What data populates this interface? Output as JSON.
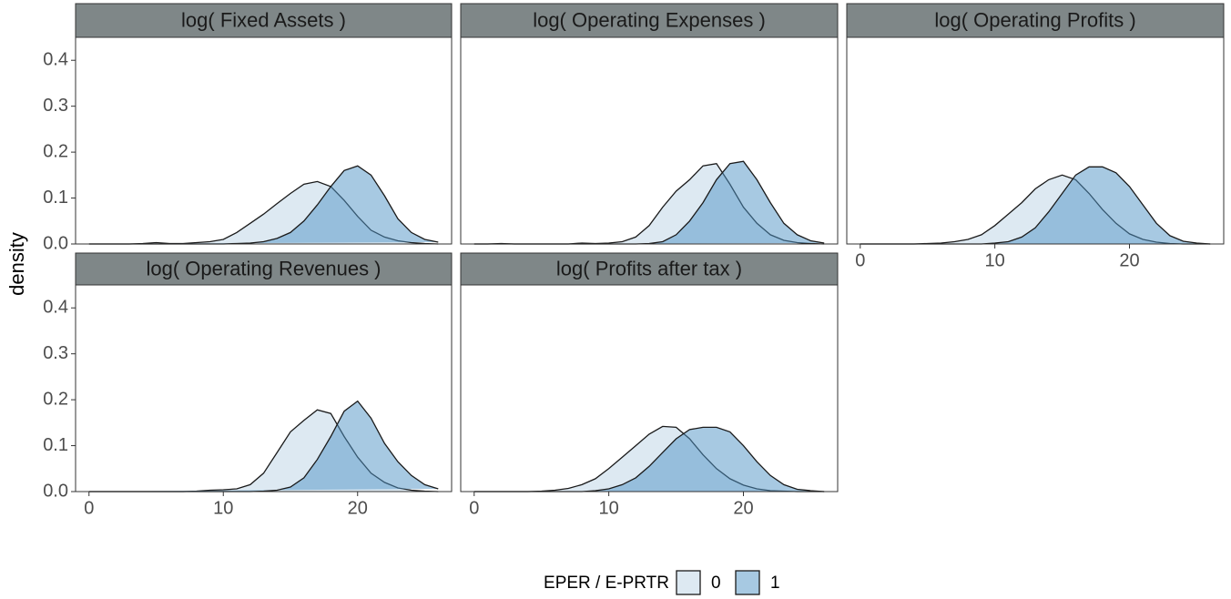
{
  "chart_data": {
    "type": "density",
    "ylabel": "density",
    "legend_title": "EPER / E-PRTR",
    "series": [
      {
        "name": "0",
        "color": "#bbd4e6"
      },
      {
        "name": "1",
        "color": "#4f93c6"
      }
    ],
    "x": [
      0,
      1,
      2,
      3,
      4,
      5,
      6,
      7,
      8,
      9,
      10,
      11,
      12,
      13,
      14,
      15,
      16,
      17,
      18,
      19,
      20,
      21,
      22,
      23,
      24,
      25,
      26
    ],
    "xlim": [
      -1,
      27
    ],
    "xticks": [
      0,
      10,
      20
    ],
    "ylim": [
      0,
      0.45
    ],
    "yticks": [
      {
        "value": 0,
        "label": "0.0"
      },
      {
        "value": 0.1,
        "label": "0.1"
      },
      {
        "value": 0.2,
        "label": "0.2"
      },
      {
        "value": 0.3,
        "label": "0.3"
      },
      {
        "value": 0.4,
        "label": "0.4"
      }
    ],
    "facets": [
      {
        "title": "log( Fixed Assets )",
        "values": [
          [
            0,
            0,
            0,
            0,
            0.001,
            0.003,
            0.001,
            0.001,
            0.003,
            0.005,
            0.01,
            0.025,
            0.045,
            0.065,
            0.088,
            0.11,
            0.13,
            0.136,
            0.125,
            0.095,
            0.06,
            0.03,
            0.015,
            0.007,
            0.003,
            0.001,
            0
          ],
          [
            0,
            0,
            0,
            0,
            0,
            0,
            0,
            0,
            0,
            0,
            0,
            0.001,
            0.002,
            0.005,
            0.012,
            0.025,
            0.05,
            0.085,
            0.125,
            0.16,
            0.17,
            0.15,
            0.105,
            0.055,
            0.025,
            0.01,
            0.004
          ]
        ]
      },
      {
        "title": "log( Operating Expenses )",
        "values": [
          [
            0,
            0,
            0.001,
            0,
            0,
            0,
            0,
            0,
            0.002,
            0.001,
            0.002,
            0.005,
            0.015,
            0.04,
            0.08,
            0.115,
            0.14,
            0.17,
            0.175,
            0.13,
            0.08,
            0.045,
            0.02,
            0.008,
            0.003,
            0.001,
            0
          ],
          [
            0,
            0,
            0,
            0,
            0,
            0,
            0,
            0,
            0,
            0,
            0,
            0,
            0,
            0.001,
            0.005,
            0.02,
            0.05,
            0.09,
            0.14,
            0.175,
            0.18,
            0.14,
            0.09,
            0.045,
            0.02,
            0.007,
            0.002
          ]
        ]
      },
      {
        "title": "log( Operating Profits )",
        "values": [
          [
            0,
            0,
            0,
            0,
            0,
            0.001,
            0.002,
            0.005,
            0.01,
            0.02,
            0.04,
            0.065,
            0.09,
            0.12,
            0.14,
            0.15,
            0.14,
            0.11,
            0.075,
            0.045,
            0.022,
            0.01,
            0.004,
            0.001,
            0,
            0,
            0
          ],
          [
            0,
            0,
            0,
            0,
            0,
            0,
            0,
            0,
            0,
            0,
            0.002,
            0.005,
            0.015,
            0.035,
            0.07,
            0.11,
            0.15,
            0.168,
            0.168,
            0.155,
            0.125,
            0.085,
            0.045,
            0.018,
            0.006,
            0.002,
            0
          ]
        ]
      },
      {
        "title": "log( Operating Revenues )",
        "values": [
          [
            0,
            0,
            0,
            0,
            0,
            0,
            0,
            0,
            0.001,
            0.003,
            0.004,
            0.006,
            0.015,
            0.04,
            0.085,
            0.13,
            0.155,
            0.178,
            0.17,
            0.12,
            0.075,
            0.04,
            0.02,
            0.008,
            0.003,
            0.001,
            0
          ],
          [
            0,
            0,
            0,
            0,
            0,
            0,
            0,
            0,
            0,
            0,
            0,
            0,
            0,
            0.001,
            0.003,
            0.01,
            0.03,
            0.07,
            0.12,
            0.175,
            0.197,
            0.16,
            0.105,
            0.065,
            0.035,
            0.015,
            0.006
          ]
        ]
      },
      {
        "title": "log( Profits after tax )",
        "values": [
          [
            0,
            0,
            0,
            0,
            0,
            0.001,
            0.003,
            0.007,
            0.015,
            0.028,
            0.05,
            0.075,
            0.1,
            0.125,
            0.142,
            0.14,
            0.115,
            0.08,
            0.05,
            0.028,
            0.014,
            0.006,
            0.002,
            0.001,
            0,
            0,
            0
          ],
          [
            0,
            0,
            0,
            0,
            0,
            0,
            0,
            0,
            0,
            0.002,
            0.006,
            0.015,
            0.03,
            0.055,
            0.085,
            0.115,
            0.135,
            0.14,
            0.14,
            0.13,
            0.1,
            0.065,
            0.035,
            0.015,
            0.005,
            0.002,
            0
          ]
        ]
      }
    ]
  }
}
